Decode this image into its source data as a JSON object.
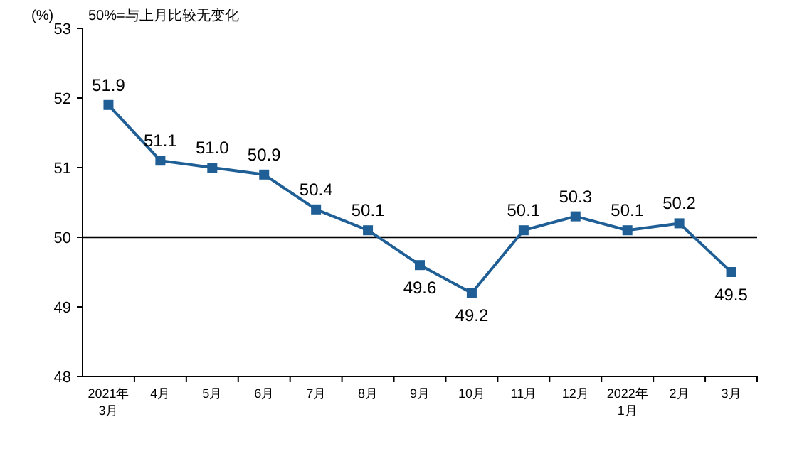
{
  "chart_data": {
    "type": "line",
    "ylabel": "(%)",
    "annotations": [
      "50%=与上月比较无变化"
    ],
    "categories": [
      "2021年\n3月",
      "4月",
      "5月",
      "6月",
      "7月",
      "8月",
      "9月",
      "10月",
      "11月",
      "12月",
      "2022年\n1月",
      "2月",
      "3月"
    ],
    "series": [
      {
        "color": "#1f5f96",
        "values": [
          51.9,
          51.1,
          51.0,
          50.9,
          50.4,
          50.1,
          49.6,
          49.2,
          50.1,
          50.3,
          50.1,
          50.2,
          49.5
        ]
      }
    ],
    "ylim": [
      48,
      53
    ],
    "yticks": [
      48,
      49,
      50,
      51,
      52,
      53
    ],
    "ref_lines": [
      {
        "axis": "y",
        "value": 50,
        "color": "#000000"
      }
    ],
    "value_labels": [
      "51.9",
      "51.1",
      "51.0",
      "50.9",
      "50.4",
      "50.1",
      "49.6",
      "49.2",
      "50.1",
      "50.3",
      "50.1",
      "50.2",
      "49.5"
    ],
    "marker": "square",
    "line_style": "solid"
  }
}
